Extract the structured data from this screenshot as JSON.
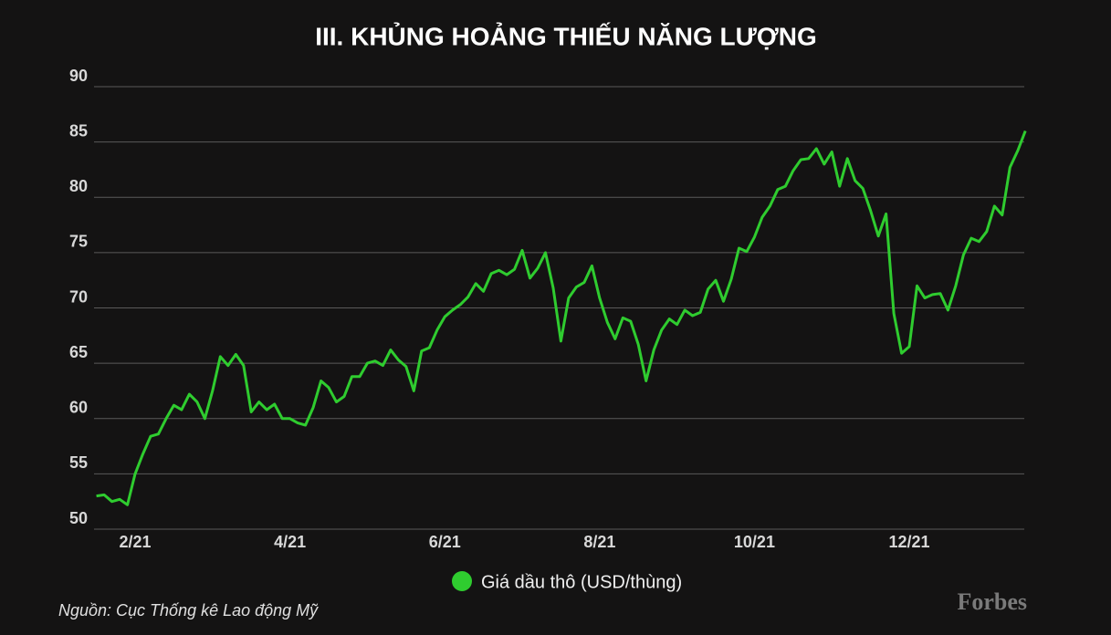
{
  "chart_data": {
    "type": "line",
    "title": "III. KHỦNG HOẢNG THIẾU NĂNG LƯỢNG",
    "categories": [
      null,
      null,
      null,
      null,
      null,
      "2/21",
      null,
      null,
      null,
      null,
      null,
      null,
      null,
      null,
      null,
      null,
      null,
      null,
      null,
      null,
      null,
      null,
      null,
      null,
      null,
      "4/21",
      null,
      null,
      null,
      null,
      null,
      null,
      null,
      null,
      null,
      null,
      null,
      null,
      null,
      null,
      null,
      null,
      null,
      null,
      null,
      "6/21",
      null,
      null,
      null,
      null,
      null,
      null,
      null,
      null,
      null,
      null,
      null,
      null,
      null,
      null,
      null,
      null,
      null,
      null,
      null,
      "8/21",
      null,
      null,
      null,
      null,
      null,
      null,
      null,
      null,
      null,
      null,
      null,
      null,
      null,
      null,
      null,
      null,
      null,
      null,
      null,
      "10/21",
      null,
      null,
      null,
      null,
      null,
      null,
      null,
      null,
      null,
      null,
      null,
      null,
      null,
      null,
      null,
      null,
      null,
      null,
      null,
      "12/21",
      null,
      null,
      null,
      null,
      null,
      null,
      null,
      null,
      null,
      null,
      null,
      null,
      null,
      null,
      null
    ],
    "series": [
      {
        "name": "Giá dầu thô (USD/thùng)",
        "color": "#2fcc2f",
        "values": [
          53.0,
          53.1,
          52.5,
          52.7,
          52.2,
          55.0,
          56.8,
          58.4,
          58.6,
          60.0,
          61.2,
          60.8,
          62.2,
          61.5,
          60.0,
          62.5,
          65.6,
          64.8,
          65.8,
          64.8,
          60.6,
          61.5,
          60.8,
          61.3,
          60.0,
          60.0,
          59.6,
          59.4,
          61.0,
          63.4,
          62.8,
          61.5,
          62.0,
          63.8,
          63.8,
          65.0,
          65.2,
          64.8,
          66.2,
          65.3,
          64.7,
          62.5,
          66.1,
          66.4,
          68.0,
          69.2,
          69.8,
          70.3,
          71.0,
          72.2,
          71.5,
          73.1,
          73.4,
          73.0,
          73.5,
          75.2,
          72.7,
          73.6,
          75.0,
          71.8,
          67.0,
          70.9,
          71.9,
          72.3,
          73.8,
          70.9,
          68.7,
          67.2,
          69.1,
          68.8,
          66.7,
          63.4,
          66.2,
          68.0,
          69.0,
          68.5,
          69.8,
          69.3,
          69.6,
          71.7,
          72.5,
          70.6,
          72.6,
          75.4,
          75.1,
          76.4,
          78.2,
          79.2,
          80.7,
          81.0,
          82.4,
          83.4,
          83.5,
          84.4,
          83.0,
          84.1,
          81.0,
          83.5,
          81.5,
          80.8,
          78.8,
          76.5,
          78.5,
          69.5,
          65.9,
          66.5,
          72.0,
          70.9,
          71.2,
          71.3,
          69.8,
          72.0,
          74.8,
          76.3,
          76.0,
          76.9,
          79.2,
          78.4,
          82.7,
          84.2,
          86.0
        ]
      }
    ],
    "ylim": [
      50,
      90
    ],
    "yticks": [
      50,
      55,
      60,
      65,
      70,
      75,
      80,
      85,
      90
    ],
    "grid": true,
    "legend": "bottom",
    "source": "Nguồn: Cục Thống kê Lao động Mỹ"
  },
  "logo": "Forbes"
}
